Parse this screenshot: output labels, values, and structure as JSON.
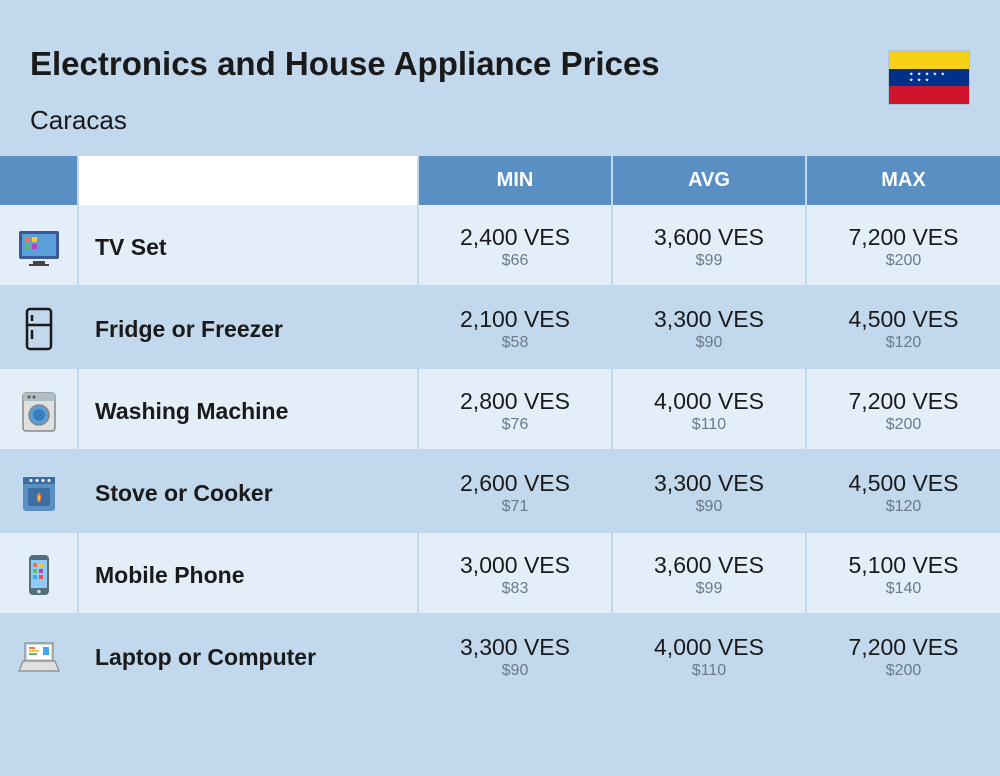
{
  "title": "Electronics and House Appliance Prices",
  "subtitle": "Caracas",
  "flag": {
    "stripes": [
      "#f7d117",
      "#003087",
      "#cf142b"
    ],
    "stars": "★ ★ ★ ★ ★ ★ ★ ★"
  },
  "columns": {
    "min": "MIN",
    "avg": "AVG",
    "max": "MAX"
  },
  "currency_main": "VES",
  "currency_sub": "$",
  "colors": {
    "page_bg": "#c1d8ed",
    "header_cell_bg": "#5a8fc4",
    "header_cell_text": "#ffffff",
    "row_light": "#e3eef8",
    "row_dark": "#c1d8ed",
    "text_main": "#1a1a1a",
    "text_sub": "#6a7a8a"
  },
  "rows": [
    {
      "icon": "tv",
      "name": "TV Set",
      "min": {
        "ves": "2,400 VES",
        "usd": "$66"
      },
      "avg": {
        "ves": "3,600 VES",
        "usd": "$99"
      },
      "max": {
        "ves": "7,200 VES",
        "usd": "$200"
      }
    },
    {
      "icon": "fridge",
      "name": "Fridge or Freezer",
      "min": {
        "ves": "2,100 VES",
        "usd": "$58"
      },
      "avg": {
        "ves": "3,300 VES",
        "usd": "$90"
      },
      "max": {
        "ves": "4,500 VES",
        "usd": "$120"
      }
    },
    {
      "icon": "washing",
      "name": "Washing Machine",
      "min": {
        "ves": "2,800 VES",
        "usd": "$76"
      },
      "avg": {
        "ves": "4,000 VES",
        "usd": "$110"
      },
      "max": {
        "ves": "7,200 VES",
        "usd": "$200"
      }
    },
    {
      "icon": "stove",
      "name": "Stove or Cooker",
      "min": {
        "ves": "2,600 VES",
        "usd": "$71"
      },
      "avg": {
        "ves": "3,300 VES",
        "usd": "$90"
      },
      "max": {
        "ves": "4,500 VES",
        "usd": "$120"
      }
    },
    {
      "icon": "phone",
      "name": "Mobile Phone",
      "min": {
        "ves": "3,000 VES",
        "usd": "$83"
      },
      "avg": {
        "ves": "3,600 VES",
        "usd": "$99"
      },
      "max": {
        "ves": "5,100 VES",
        "usd": "$140"
      }
    },
    {
      "icon": "laptop",
      "name": "Laptop or Computer",
      "min": {
        "ves": "3,300 VES",
        "usd": "$90"
      },
      "avg": {
        "ves": "4,000 VES",
        "usd": "$110"
      },
      "max": {
        "ves": "7,200 VES",
        "usd": "$200"
      }
    }
  ],
  "typography": {
    "title_fontsize": 33,
    "title_weight": 800,
    "subtitle_fontsize": 26,
    "header_fontsize": 20,
    "name_fontsize": 23,
    "name_weight": 800,
    "val_main_fontsize": 23,
    "val_sub_fontsize": 16
  }
}
